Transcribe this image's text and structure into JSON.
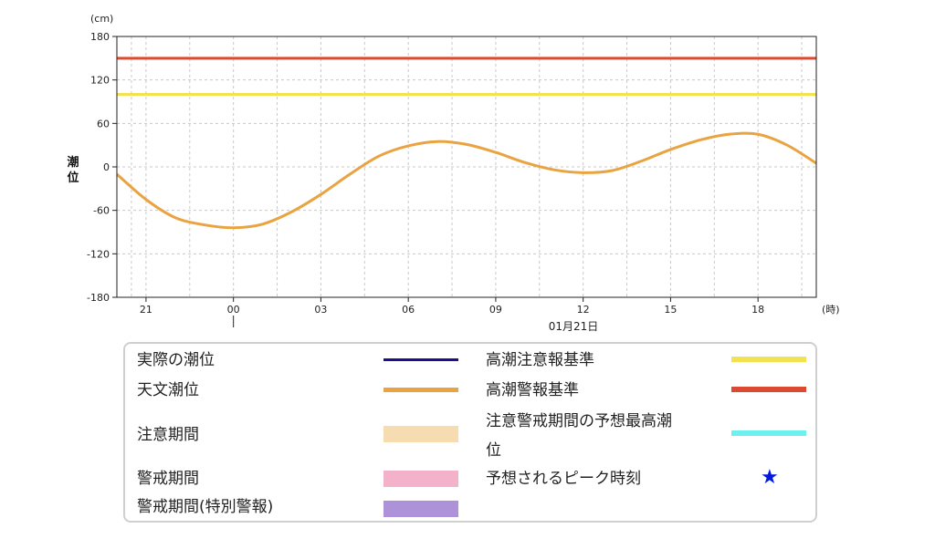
{
  "colors": {
    "axis": "#222222",
    "grid": "#c8c8c8",
    "astronomical_tide": "#e9a341",
    "caution_level": "#f2e24f",
    "warning_level": "#dd4a32",
    "actual_tide": "#1a0f8f",
    "caution_period": "#f7dcb2",
    "warning_period": "#f3b1ca",
    "special_warning_period": "#ae92d9",
    "forecast_max_tide": "#6ef0ef",
    "peak_star": "#0019e0"
  },
  "chart_data": {
    "type": "line",
    "y_unit": "(cm)",
    "x_unit": "(時)",
    "ylabel": "潮位",
    "date_label": "01月21日",
    "ylim": [
      -180,
      180
    ],
    "y_ticks": [
      180,
      120,
      60,
      0,
      -60,
      -120,
      -180
    ],
    "y_tick_labels": [
      "180",
      "120",
      "60",
      "0",
      "-60",
      "-120",
      "-180"
    ],
    "xlim": [
      20.0,
      44.0
    ],
    "x_ticks": [
      21,
      24,
      27,
      30,
      33,
      36,
      39,
      42
    ],
    "x_tick_labels": [
      "21",
      "00",
      "03",
      "06",
      "09",
      "12",
      "15",
      "18"
    ],
    "x_gridlines": [
      20.5,
      21,
      22.5,
      24,
      25.5,
      27,
      28.5,
      30,
      31.5,
      33,
      34.5,
      36,
      37.5,
      39,
      40.5,
      42,
      43.5
    ],
    "day_boundary_x": 24,
    "series": [
      {
        "name": "天文潮位",
        "x": [
          20.0,
          21.0,
          22.0,
          23.0,
          24.0,
          25.0,
          26.0,
          27.0,
          28.0,
          29.0,
          30.0,
          31.0,
          32.0,
          33.0,
          34.0,
          35.0,
          36.0,
          37.0,
          38.0,
          39.0,
          40.0,
          41.0,
          42.0,
          43.0,
          44.0
        ],
        "y": [
          -10,
          -45,
          -70,
          -80,
          -84,
          -79,
          -62,
          -38,
          -10,
          15,
          29,
          35,
          31,
          20,
          6,
          -4,
          -8,
          -5,
          8,
          24,
          37,
          45,
          45,
          30,
          5
        ]
      },
      {
        "name": "高潮注意報基準",
        "x": [
          20.0,
          44.0
        ],
        "y": [
          100,
          100
        ]
      },
      {
        "name": "高潮警報基準",
        "x": [
          20.0,
          44.0
        ],
        "y": [
          150,
          150
        ]
      }
    ]
  },
  "legend": {
    "actual_tide": "実際の潮位",
    "astronomical_tide": "天文潮位",
    "caution_period": "注意期間",
    "warning_period": "警戒期間",
    "special_warning_period": "警戒期間(特別警報)",
    "storm_surge_advisory_level": "高潮注意報基準",
    "storm_surge_warning_level": "高潮警報基準",
    "forecast_max_tide_line1": "注意警戒期間の予想最高潮",
    "forecast_max_tide_line2": "位",
    "peak_time": "予想されるピーク時刻",
    "peak_star_icon": "★"
  }
}
